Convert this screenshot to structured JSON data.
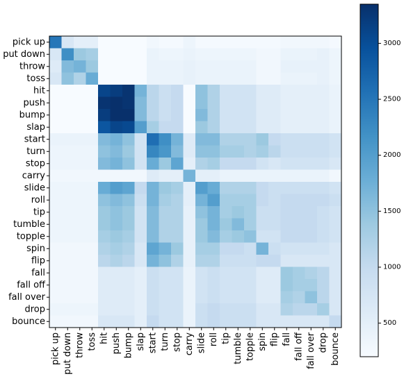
{
  "chart_data": {
    "type": "heatmap",
    "title": "",
    "xlabel": "",
    "ylabel": "",
    "colormap": "Blues",
    "vmin": 200,
    "vmax": 3350,
    "colorbar_ticks": [
      500,
      1000,
      1500,
      2000,
      2500,
      3000
    ],
    "colorbar_tick_labels": [
      "500",
      "1000",
      "1500",
      "2000",
      "2500",
      "3000"
    ],
    "labels": [
      "pick up",
      "put down",
      "throw",
      "toss",
      "hit",
      "push",
      "bump",
      "slap",
      "start",
      "turn",
      "stop",
      "carry",
      "slide",
      "roll",
      "tip",
      "tumble",
      "topple",
      "spin",
      "flip",
      "fall",
      "fall off",
      "fall over",
      "drop",
      "bounce"
    ],
    "matrix": [
      [
        2500,
        700,
        500,
        500,
        200,
        200,
        200,
        200,
        300,
        250,
        250,
        350,
        250,
        250,
        250,
        250,
        250,
        250,
        250,
        300,
        300,
        300,
        300,
        250
      ],
      [
        700,
        2200,
        1400,
        1300,
        200,
        200,
        200,
        200,
        400,
        350,
        350,
        400,
        350,
        350,
        350,
        350,
        350,
        300,
        300,
        400,
        400,
        400,
        450,
        350
      ],
      [
        600,
        1600,
        1700,
        1400,
        200,
        200,
        200,
        200,
        400,
        400,
        400,
        450,
        400,
        400,
        400,
        400,
        400,
        300,
        300,
        450,
        450,
        450,
        450,
        350
      ],
      [
        700,
        1500,
        1200,
        1800,
        200,
        200,
        200,
        200,
        400,
        400,
        400,
        450,
        400,
        400,
        400,
        400,
        400,
        300,
        300,
        400,
        400,
        400,
        450,
        350
      ],
      [
        200,
        200,
        200,
        200,
        3100,
        3200,
        3300,
        1700,
        1100,
        900,
        1000,
        200,
        1500,
        1200,
        800,
        800,
        800,
        600,
        600,
        500,
        500,
        500,
        500,
        400
      ],
      [
        200,
        200,
        200,
        200,
        3300,
        3350,
        3300,
        1600,
        1100,
        900,
        1000,
        200,
        1500,
        1200,
        800,
        800,
        800,
        600,
        600,
        500,
        500,
        500,
        500,
        400
      ],
      [
        200,
        200,
        200,
        200,
        3200,
        3350,
        3350,
        1600,
        1100,
        900,
        1000,
        200,
        1600,
        1200,
        800,
        800,
        800,
        600,
        600,
        500,
        500,
        500,
        500,
        400
      ],
      [
        200,
        200,
        200,
        200,
        2900,
        3100,
        3050,
        2000,
        1300,
        1000,
        1000,
        200,
        1400,
        1200,
        800,
        800,
        800,
        600,
        600,
        500,
        500,
        500,
        500,
        400
      ],
      [
        400,
        400,
        400,
        400,
        1600,
        1700,
        1500,
        800,
        2600,
        2200,
        1700,
        600,
        1600,
        1600,
        1200,
        1200,
        1200,
        1400,
        1000,
        900,
        900,
        900,
        900,
        800
      ],
      [
        350,
        350,
        350,
        350,
        1500,
        1600,
        1400,
        800,
        2300,
        2100,
        1600,
        600,
        1500,
        1500,
        1300,
        1300,
        1200,
        1300,
        1100,
        900,
        900,
        900,
        900,
        800
      ],
      [
        350,
        350,
        350,
        350,
        1600,
        1700,
        1500,
        800,
        1800,
        1400,
        1900,
        500,
        1200,
        1300,
        1000,
        1000,
        1000,
        800,
        700,
        800,
        800,
        800,
        800,
        700
      ],
      [
        300,
        300,
        300,
        300,
        300,
        300,
        300,
        300,
        600,
        500,
        500,
        1700,
        500,
        500,
        400,
        400,
        400,
        400,
        400,
        400,
        400,
        400,
        400,
        300
      ],
      [
        350,
        350,
        350,
        350,
        1800,
        2000,
        1900,
        1000,
        1700,
        1400,
        1300,
        500,
        2000,
        1800,
        1200,
        1200,
        1200,
        1000,
        900,
        900,
        900,
        900,
        900,
        800
      ],
      [
        350,
        350,
        350,
        350,
        1500,
        1600,
        1500,
        900,
        1700,
        1300,
        1200,
        500,
        1700,
        2000,
        1300,
        1300,
        1300,
        1000,
        900,
        1000,
        1000,
        1000,
        1000,
        900
      ],
      [
        350,
        350,
        350,
        350,
        1400,
        1500,
        1400,
        800,
        1600,
        1200,
        1200,
        450,
        1500,
        1700,
        1300,
        1400,
        1300,
        900,
        900,
        1000,
        1000,
        1000,
        900,
        800
      ],
      [
        350,
        350,
        350,
        350,
        1400,
        1500,
        1400,
        800,
        1600,
        1200,
        1200,
        450,
        1400,
        1700,
        1400,
        1600,
        1300,
        900,
        900,
        1000,
        1000,
        1000,
        900,
        800
      ],
      [
        350,
        350,
        350,
        350,
        1300,
        1400,
        1300,
        800,
        1600,
        1200,
        1200,
        450,
        1400,
        1600,
        1300,
        1400,
        1500,
        800,
        800,
        1000,
        1000,
        1000,
        900,
        800
      ],
      [
        300,
        300,
        300,
        300,
        1200,
        1300,
        1200,
        700,
        1900,
        1700,
        1400,
        450,
        1300,
        1300,
        1000,
        1000,
        900,
        1700,
        900,
        800,
        800,
        800,
        800,
        700
      ],
      [
        300,
        300,
        300,
        300,
        1100,
        1200,
        1100,
        700,
        1700,
        1500,
        1200,
        450,
        1200,
        1200,
        900,
        900,
        900,
        1000,
        1000,
        700,
        700,
        700,
        700,
        700
      ],
      [
        300,
        300,
        300,
        300,
        600,
        600,
        600,
        500,
        900,
        800,
        800,
        400,
        800,
        900,
        800,
        800,
        800,
        600,
        600,
        1400,
        1300,
        1200,
        1100,
        700
      ],
      [
        300,
        300,
        300,
        300,
        600,
        600,
        600,
        500,
        900,
        800,
        800,
        400,
        800,
        900,
        800,
        800,
        800,
        600,
        600,
        1400,
        1300,
        1300,
        1100,
        700
      ],
      [
        300,
        300,
        300,
        300,
        600,
        600,
        600,
        500,
        900,
        800,
        800,
        400,
        800,
        900,
        800,
        800,
        800,
        600,
        600,
        1300,
        1200,
        1500,
        1100,
        700
      ],
      [
        350,
        350,
        350,
        350,
        600,
        600,
        600,
        500,
        900,
        800,
        800,
        400,
        900,
        1000,
        900,
        900,
        900,
        700,
        700,
        1200,
        1100,
        1100,
        1300,
        700
      ],
      [
        300,
        300,
        300,
        300,
        700,
        700,
        700,
        500,
        1000,
        800,
        800,
        400,
        900,
        1000,
        900,
        900,
        900,
        700,
        700,
        700,
        700,
        700,
        700,
        1000
      ]
    ]
  }
}
